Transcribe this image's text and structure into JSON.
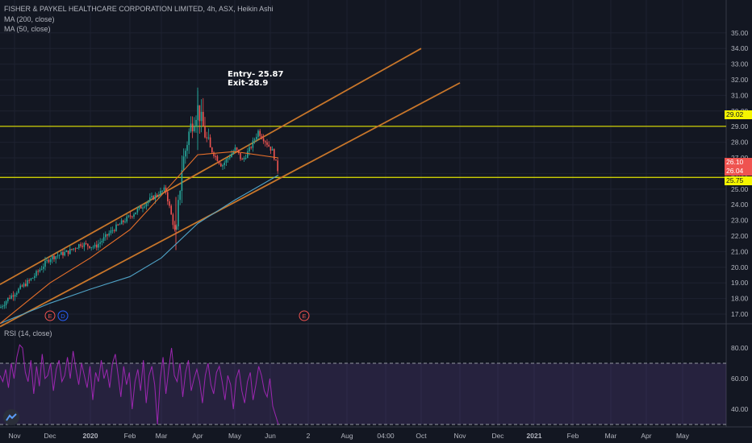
{
  "header": {
    "title": "FISHER & PAYKEL HEALTHCARE CORPORATION LIMITED, 4h, ASX, Heikin Ashi",
    "ma200_label": "MA (200, close)",
    "ma50_label": "MA (50, close)",
    "rsi_label": "RSI (14, close)"
  },
  "colors": {
    "background": "#131722",
    "grid": "#1e2230",
    "candle_up": "#26a69a",
    "candle_down": "#ef5350",
    "ma200": "#4fa3c7",
    "ma50": "#e8702a",
    "trendline": "#c8762a",
    "hline": "#e3e300",
    "rsi_line": "#9c27b0",
    "rsi_band": "#7e57c2",
    "axis_text": "#b2b5be"
  },
  "price_tags": [
    {
      "value": "29.02",
      "bg": "#f5f500",
      "fg": "#131722"
    },
    {
      "value": "26.10",
      "bg": "#ef5350",
      "fg": "#ffffff"
    },
    {
      "value": "26.04",
      "bg": "#ef5350",
      "fg": "#ffffff"
    },
    {
      "value": "25.75",
      "bg": "#f5f500",
      "fg": "#131722"
    }
  ],
  "annotation": {
    "entry": "Entry- 25.87",
    "exit": "Exit-28.9"
  },
  "events": [
    {
      "label": "E",
      "type": "earnings"
    },
    {
      "label": "D",
      "type": "dividend"
    },
    {
      "label": "E",
      "type": "earnings"
    }
  ],
  "chart_data": [
    {
      "type": "candlestick",
      "title": "FISHER & PAYKEL HEALTHCARE CORPORATION LIMITED, 4h, ASX, Heikin Ashi",
      "y_axis": {
        "ticks": [
          "17.00",
          "18.00",
          "19.00",
          "20.00",
          "21.00",
          "22.00",
          "23.00",
          "24.00",
          "25.00",
          "26.00",
          "27.00",
          "28.00",
          "29.00",
          "30.00",
          "31.00",
          "32.00",
          "33.00",
          "34.00",
          "35.00"
        ],
        "ylim": [
          16.2,
          35.6
        ]
      },
      "x_axis": {
        "ticks": [
          "Nov",
          "Dec",
          "2020",
          "Feb",
          "Mar",
          "Apr",
          "May",
          "Jun",
          "2",
          "Aug",
          "04:00",
          "Oct",
          "Nov",
          "Dec",
          "2021",
          "Feb",
          "Mar",
          "Apr",
          "May"
        ]
      },
      "price_path_close": [
        [
          "Nov",
          17.4
        ],
        [
          "Nov",
          18.0
        ],
        [
          "Dec",
          19.3
        ],
        [
          "Dec",
          20.6
        ],
        [
          "Dec",
          21.0
        ],
        [
          "2020",
          21.5
        ],
        [
          "2020",
          21.3
        ],
        [
          "Feb",
          22.4
        ],
        [
          "Feb",
          23.3
        ],
        [
          "Feb",
          24.3
        ],
        [
          "Mar",
          25.0
        ],
        [
          "Mar",
          22.0
        ],
        [
          "Mar",
          26.3
        ],
        [
          "Mar",
          28.8
        ],
        [
          "Apr",
          30.2
        ],
        [
          "Apr",
          27.8
        ],
        [
          "Apr",
          26.5
        ],
        [
          "Apr",
          27.6
        ],
        [
          "May",
          26.8
        ],
        [
          "May",
          27.6
        ],
        [
          "May",
          28.7
        ],
        [
          "May",
          28.0
        ],
        [
          "Jun",
          27.4
        ],
        [
          "Jun",
          26.1
        ]
      ],
      "series": [
        {
          "name": "MA (200, close)",
          "points": [
            [
              "Nov",
              16.4
            ],
            [
              "Dec",
              17.7
            ],
            [
              "2020",
              18.6
            ],
            [
              "Feb",
              19.4
            ],
            [
              "Mar",
              20.6
            ],
            [
              "Apr",
              22.8
            ],
            [
              "May",
              24.3
            ],
            [
              "Jun",
              25.9
            ]
          ]
        },
        {
          "name": "MA (50, close)",
          "points": [
            [
              "Nov",
              16.4
            ],
            [
              "Dec",
              19.0
            ],
            [
              "2020",
              20.6
            ],
            [
              "Feb",
              22.4
            ],
            [
              "Mar",
              24.6
            ],
            [
              "Apr",
              27.2
            ],
            [
              "May",
              27.4
            ],
            [
              "Jun",
              27.0
            ]
          ]
        }
      ],
      "horizontal_lines": [
        29.02,
        25.75
      ],
      "trend_lines": [
        {
          "from": [
            "Nov",
            18.9
          ],
          "to": [
            "Oct",
            34.0
          ]
        },
        {
          "from": [
            "Nov",
            16.2
          ],
          "to": [
            "Nov",
            31.8
          ]
        }
      ],
      "annotations": [
        "Entry- 25.87",
        "Exit-28.9"
      ]
    },
    {
      "type": "line",
      "title": "RSI (14, close)",
      "y_axis": {
        "ticks": [
          "40.00",
          "60.00",
          "80.00"
        ],
        "ylim": [
          25,
          94
        ]
      },
      "bands": {
        "upper": 70,
        "lower": 30
      },
      "series": [
        {
          "name": "RSI (14, close)",
          "values": [
            62,
            58,
            66,
            54,
            70,
            60,
            74,
            82,
            80,
            64,
            58,
            72,
            50,
            68,
            55,
            76,
            60,
            62,
            70,
            52,
            66,
            72,
            58,
            62,
            74,
            60,
            78,
            66,
            56,
            70,
            62,
            54,
            68,
            46,
            64,
            58,
            72,
            60,
            66,
            54,
            70,
            76,
            62,
            48,
            68,
            56,
            64,
            40,
            58,
            66,
            52,
            72,
            44,
            62,
            68,
            56,
            30,
            60,
            74,
            50,
            66,
            80,
            62,
            58,
            70,
            48,
            64,
            72,
            52,
            60,
            66,
            58,
            44,
            62,
            70,
            56,
            50,
            64,
            68,
            58,
            46,
            62,
            56,
            40,
            60,
            66,
            52,
            44,
            58,
            64,
            46,
            56,
            68,
            62,
            52,
            48,
            60,
            42,
            36,
            30
          ]
        }
      ]
    }
  ]
}
